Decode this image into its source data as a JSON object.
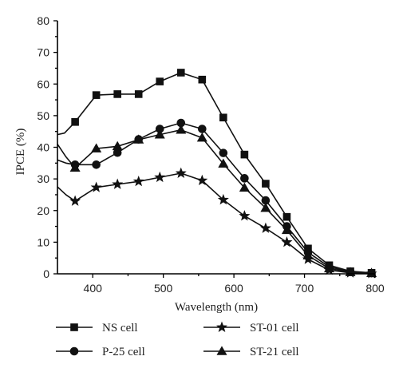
{
  "chart_data": {
    "type": "line",
    "xlabel": "Wavelength (nm)",
    "ylabel": "IPCE (%)",
    "xlim": [
      350,
      800
    ],
    "ylim": [
      0,
      80
    ],
    "xticks": [
      400,
      500,
      600,
      700,
      800
    ],
    "yticks": [
      0,
      10,
      20,
      30,
      40,
      50,
      60,
      70,
      80
    ],
    "grid": false,
    "legend_position": "bottom",
    "series": [
      {
        "name": "NS cell",
        "marker": "square",
        "points": [
          [
            350,
            44
          ],
          [
            360,
            44.5
          ],
          [
            375,
            48
          ],
          [
            405,
            56.5
          ],
          [
            435,
            56.8
          ],
          [
            465,
            56.8
          ],
          [
            495,
            60.8
          ],
          [
            525,
            63.6
          ],
          [
            555,
            61.4
          ],
          [
            585,
            49.4
          ],
          [
            615,
            37.7
          ],
          [
            645,
            28.5
          ],
          [
            675,
            18
          ],
          [
            705,
            8
          ],
          [
            735,
            2.7
          ],
          [
            765,
            0.8
          ],
          [
            795,
            0.3
          ]
        ],
        "marker_x": [
          375,
          405,
          435,
          465,
          495,
          525,
          555,
          585,
          615,
          645,
          675,
          705,
          735,
          765,
          795
        ]
      },
      {
        "name": "P-25 cell",
        "marker": "circle",
        "points": [
          [
            350,
            36
          ],
          [
            362,
            35
          ],
          [
            375,
            34.5
          ],
          [
            405,
            34.5
          ],
          [
            435,
            38.3
          ],
          [
            465,
            42.5
          ],
          [
            495,
            45.8
          ],
          [
            525,
            47.7
          ],
          [
            555,
            45.8
          ],
          [
            585,
            38.2
          ],
          [
            615,
            30.2
          ],
          [
            645,
            23.2
          ],
          [
            675,
            15
          ],
          [
            705,
            6.8
          ],
          [
            735,
            2.2
          ],
          [
            765,
            0.6
          ],
          [
            795,
            0.2
          ]
        ],
        "marker_x": [
          375,
          405,
          435,
          465,
          495,
          525,
          555,
          585,
          615,
          645,
          675,
          705,
          735,
          765,
          795
        ]
      },
      {
        "name": "ST-01 cell",
        "marker": "star",
        "points": [
          [
            350,
            27.5
          ],
          [
            362,
            25
          ],
          [
            375,
            23
          ],
          [
            405,
            27.3
          ],
          [
            435,
            28.3
          ],
          [
            465,
            29.2
          ],
          [
            495,
            30.5
          ],
          [
            525,
            31.8
          ],
          [
            555,
            29.5
          ],
          [
            585,
            23.4
          ],
          [
            615,
            18.3
          ],
          [
            645,
            14.4
          ],
          [
            675,
            10
          ],
          [
            705,
            4.6
          ],
          [
            735,
            1.2
          ],
          [
            765,
            0.3
          ],
          [
            795,
            0.1
          ]
        ],
        "marker_x": [
          375,
          405,
          435,
          465,
          495,
          525,
          555,
          585,
          615,
          645,
          675,
          705,
          735,
          765,
          795
        ]
      },
      {
        "name": "ST-21 cell",
        "marker": "triangle",
        "points": [
          [
            350,
            41
          ],
          [
            362,
            37
          ],
          [
            375,
            33.5
          ],
          [
            405,
            39.6
          ],
          [
            435,
            40.3
          ],
          [
            465,
            42.4
          ],
          [
            495,
            44
          ],
          [
            525,
            45.5
          ],
          [
            555,
            43
          ],
          [
            585,
            34.8
          ],
          [
            615,
            27.2
          ],
          [
            645,
            20.8
          ],
          [
            675,
            13.8
          ],
          [
            705,
            5.8
          ],
          [
            735,
            1.7
          ],
          [
            765,
            0.5
          ],
          [
            795,
            0.2
          ]
        ],
        "marker_x": [
          375,
          405,
          435,
          465,
          495,
          525,
          555,
          585,
          615,
          645,
          675,
          705,
          735,
          765,
          795
        ]
      }
    ],
    "legend_items": [
      {
        "label": "NS cell",
        "marker": "square"
      },
      {
        "label": "ST-01 cell",
        "marker": "star"
      },
      {
        "label": "P-25 cell",
        "marker": "circle"
      },
      {
        "label": "ST-21 cell",
        "marker": "triangle"
      }
    ]
  }
}
